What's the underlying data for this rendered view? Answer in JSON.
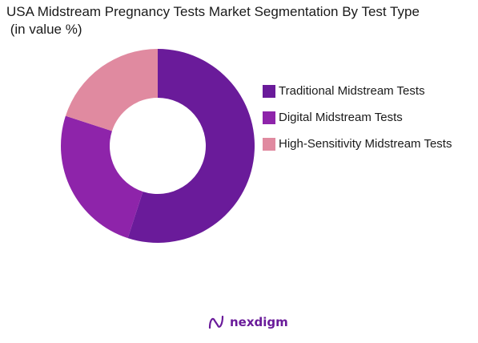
{
  "title": {
    "line1": "USA Midstream Pregnancy Tests Market Segmentation By Test Type",
    "line2": " (in value %)"
  },
  "chart_data": {
    "type": "pie",
    "variant": "donut",
    "title": "USA Midstream Pregnancy Tests Market Segmentation By Test Type (in value %)",
    "legend_position": "right",
    "categories": [
      "Traditional Midstream Tests",
      "Digital Midstream Tests",
      "High-Sensitivity Midstream Tests"
    ],
    "values": [
      55,
      25,
      20
    ],
    "colors": [
      "#6a1b9a",
      "#8e24aa",
      "#e08aa0"
    ]
  },
  "legend": {
    "items": [
      {
        "label": "Traditional Midstream Tests",
        "color": "#6a1b9a"
      },
      {
        "label": "Digital Midstream Tests",
        "color": "#8e24aa"
      },
      {
        "label": "High-Sensitivity Midstream Tests",
        "color": "#e08aa0"
      }
    ]
  },
  "logo": {
    "text": "nexdigm",
    "icon": "nexdigm-logo-icon",
    "color": "#6a1b9a"
  }
}
